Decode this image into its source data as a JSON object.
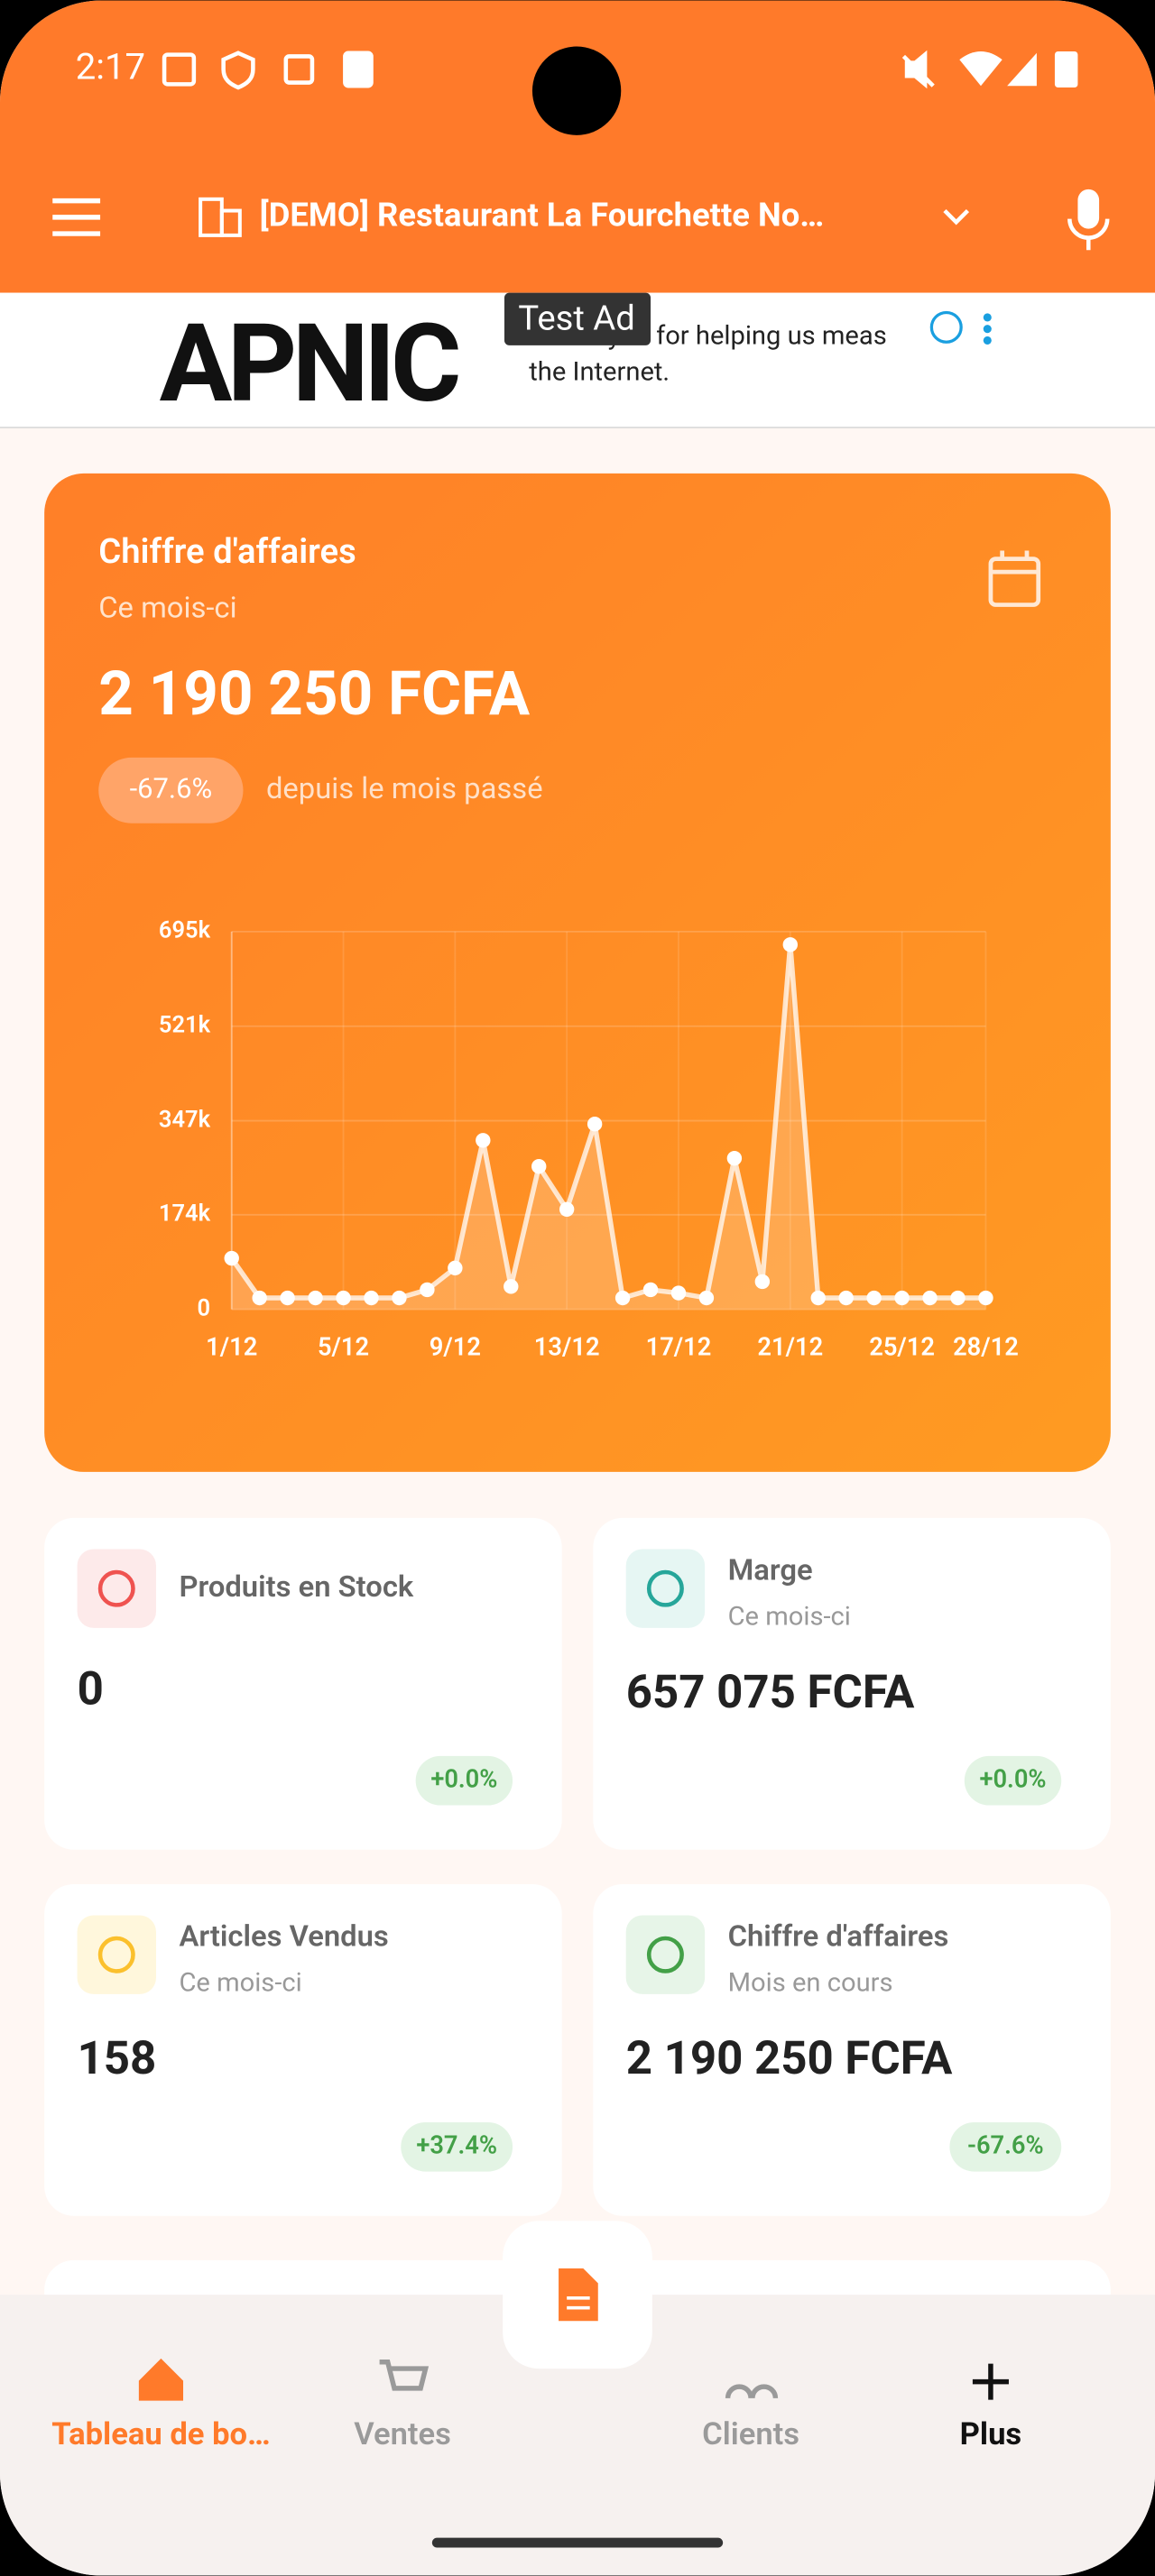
{
  "status_bar": {
    "time": "2:17"
  },
  "app_bar": {
    "title": "[DEMO] Restaurant La Fourchette No…"
  },
  "ad": {
    "label": "Test Ad",
    "brand": "APNIC",
    "text_lines": [
      "Thank you for helping us meas",
      "the Internet."
    ]
  },
  "revenue_card": {
    "title": "Chiffre d'affaires",
    "subtitle": "Ce mois-ci",
    "amount": "2 190 250 FCFA",
    "change": "-67.6%",
    "change_note": "depuis le mois passé"
  },
  "chart_data": {
    "type": "line",
    "x": [
      "1/12",
      null,
      null,
      null,
      "5/12",
      null,
      null,
      null,
      "9/12",
      null,
      null,
      null,
      "13/12",
      null,
      null,
      null,
      "17/12",
      null,
      null,
      null,
      "21/12",
      null,
      null,
      null,
      "25/12",
      null,
      null,
      "28/12"
    ],
    "values": [
      94000,
      21000,
      21000,
      21000,
      21000,
      21000,
      21000,
      36000,
      76000,
      311000,
      42000,
      263000,
      184000,
      341000,
      21000,
      36000,
      30000,
      21000,
      278000,
      51000,
      671000,
      21000,
      21000,
      21000,
      21000,
      21000,
      21000,
      21000
    ],
    "color": "#ffffff",
    "ylim": [
      0,
      695000
    ],
    "yticks": [
      0,
      {
        "value": 174000,
        "label": "174k"
      },
      {
        "value": 347000,
        "label": "347k"
      },
      {
        "value": 521000,
        "label": "521k"
      },
      {
        "value": 695000,
        "label": "695k"
      }
    ],
    "grid": true
  },
  "stat_cards": [
    {
      "title": "Produits en Stock",
      "value": "0",
      "change": "+0.0%"
    },
    {
      "title": "Marge",
      "subtitle": "Ce mois-ci",
      "value": "657 075 FCFA",
      "change": "+0.0%"
    },
    {
      "title": "Articles Vendus",
      "subtitle": "Ce mois-ci",
      "value": "158",
      "change": "+37.4%"
    },
    {
      "title": "Chiffre d'affaires",
      "subtitle": "Mois en cours",
      "value": "2 190 250 FCFA",
      "change": "-67.6%"
    }
  ],
  "bottom_nav": [
    {
      "label": "Tableau de bo…"
    },
    {
      "label": "Ventes"
    },
    {
      "label": "Clients"
    },
    {
      "label": "Plus"
    }
  ]
}
